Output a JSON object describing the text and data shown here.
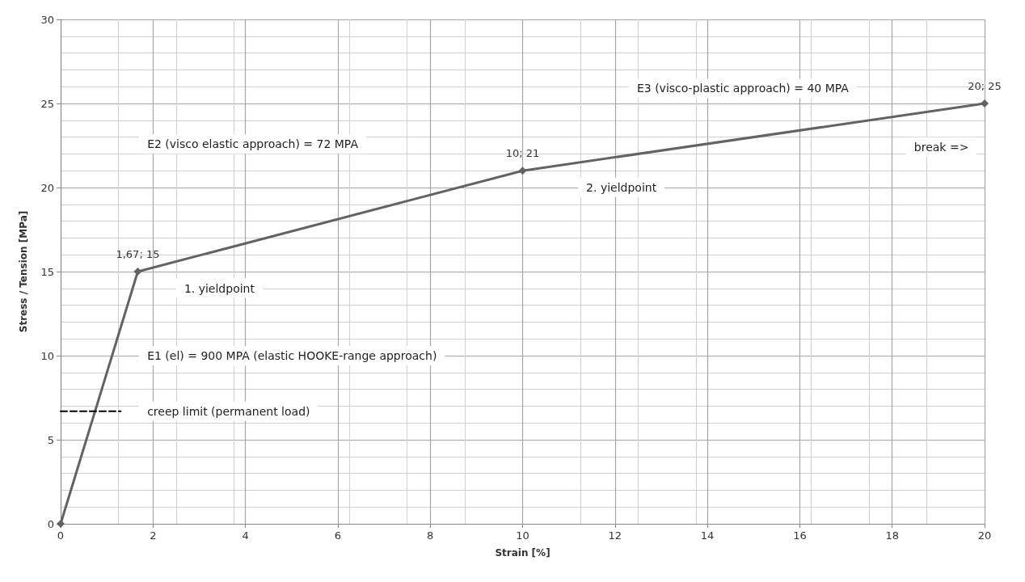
{
  "chart_data": {
    "type": "line",
    "xlabel": "Strain [%]",
    "ylabel": "Stress / Tension [MPa]",
    "series": [
      {
        "color": "#636363",
        "x": [
          0,
          1.67,
          10,
          20
        ],
        "values": [
          0,
          15,
          21,
          25
        ],
        "value_labels": [
          null,
          "1,67; 15",
          "10; 21",
          "20; 25"
        ],
        "marker": "diamond",
        "line_style": "solid"
      },
      {
        "color": "#000000",
        "x": [
          0,
          1.3
        ],
        "values": [
          6.7,
          6.7
        ],
        "marker": "none",
        "line_style": "dashed"
      }
    ],
    "xlim": [
      0,
      20
    ],
    "xticks": [
      0,
      2,
      4,
      6,
      8,
      10,
      12,
      14,
      16,
      18,
      20
    ],
    "ylim": [
      0,
      30
    ],
    "yticks": [
      0,
      5,
      10,
      15,
      20,
      25,
      30
    ],
    "grid": true,
    "annotations": [
      "E1 (el) = 900 MPA (elastic HOOKE-range approach)",
      "creep limit (permanent load)",
      "1. yieldpoint",
      "E2 (visco elastic approach) = 72 MPA",
      "2. yieldpoint",
      "E3 (visco-plastic approach) = 40 MPA",
      "break =>"
    ]
  }
}
